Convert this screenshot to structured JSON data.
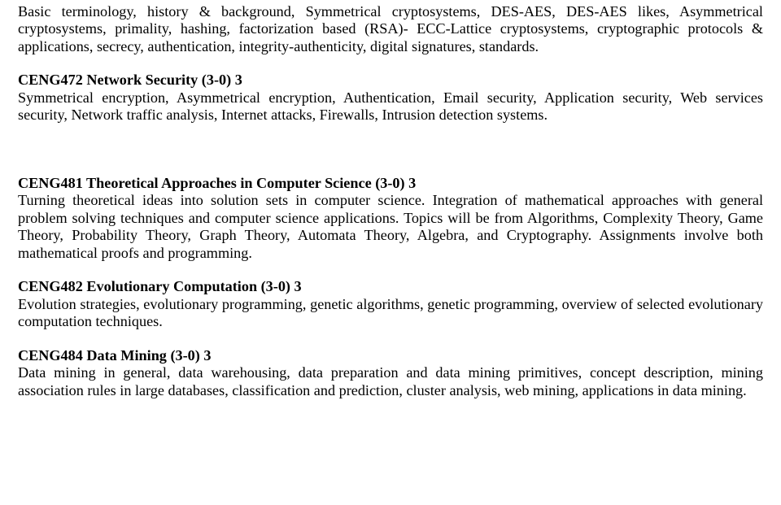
{
  "intro": "Basic terminology, history & background, Symmetrical cryptosystems, DES-AES, DES-AES likes, Asymmetrical cryptosystems, primality, hashing, factorization based (RSA)- ECC-Lattice cryptosystems, cryptographic protocols & applications, secrecy, authentication, integrity-authenticity, digital signatures, standards.",
  "courses": [
    {
      "title": "CENG472 Network Security (3-0) 3",
      "desc": "Symmetrical encryption, Asymmetrical encryption, Authentication, Email security, Application security, Web services security, Network traffic analysis, Internet attacks, Firewalls, Intrusion detection systems.",
      "gap_after": "big"
    },
    {
      "title": "CENG481 Theoretical Approaches in Computer Science (3-0) 3",
      "desc": "Turning theoretical ideas into solution sets in computer science. Integration of mathematical approaches with general problem solving techniques and computer science applications. Topics will be from Algorithms, Complexity Theory, Game Theory, Probability Theory, Graph Theory, Automata Theory, Algebra, and Cryptography. Assignments involve both mathematical proofs and programming.",
      "gap_after": "med"
    },
    {
      "title": "CENG482 Evolutionary Computation (3-0) 3",
      "desc": "Evolution strategies, evolutionary programming, genetic algorithms, genetic programming, overview of selected evolutionary computation techniques.",
      "gap_after": "med"
    },
    {
      "title": "CENG484 Data Mining (3-0) 3",
      "desc": "Data mining in general, data warehousing, data preparation and data mining primitives, concept description, mining association rules in large databases, classification and prediction, cluster analysis, web mining, applications in data mining.",
      "gap_after": "none"
    }
  ]
}
